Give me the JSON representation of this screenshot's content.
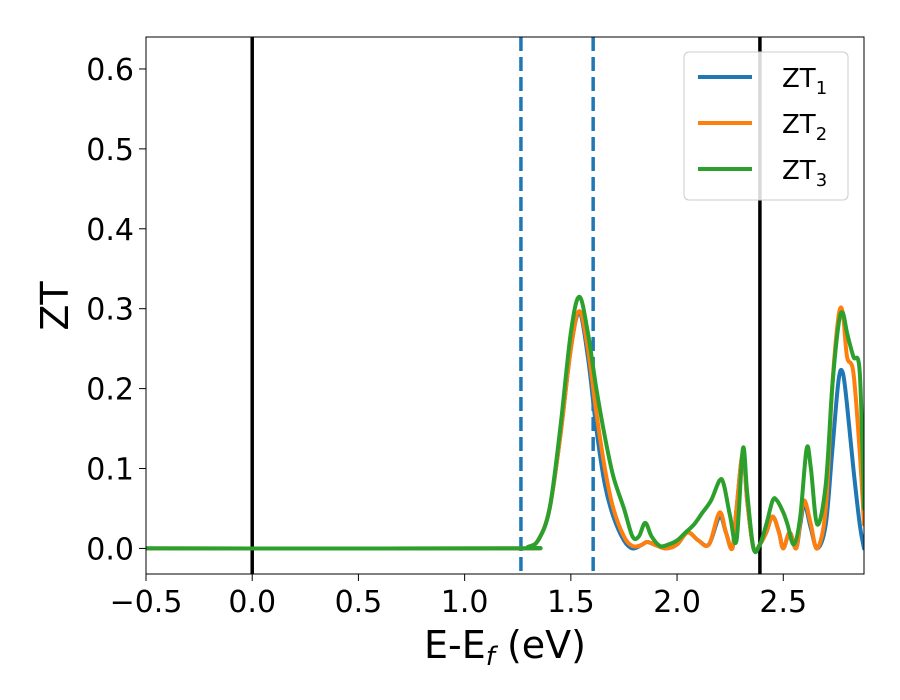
{
  "chart_data": {
    "type": "line",
    "xlabel": "E-E",
    "xlabel_sub": "f",
    "xlabel_unit": " (eV)",
    "ylabel": "ZT",
    "xlim": [
      -0.5,
      2.88
    ],
    "ylim": [
      -0.032,
      0.64
    ],
    "x_ticks": [
      -0.5,
      0.0,
      0.5,
      1.0,
      1.5,
      2.0,
      2.5
    ],
    "x_tick_labels": [
      "−0.5",
      "0.0",
      "0.5",
      "1.0",
      "1.5",
      "2.0",
      "2.5"
    ],
    "y_ticks": [
      0.0,
      0.1,
      0.2,
      0.3,
      0.4,
      0.5,
      0.6
    ],
    "y_tick_labels": [
      "0.0",
      "0.1",
      "0.2",
      "0.3",
      "0.4",
      "0.5",
      "0.6"
    ],
    "grid": false,
    "legend_position": "top-right",
    "vlines": [
      {
        "x": 0.0,
        "style": "solid",
        "color": "#000000"
      },
      {
        "x": 2.39,
        "style": "solid",
        "color": "#000000"
      },
      {
        "x": 1.265,
        "style": "dashed",
        "color": "#1f77b4"
      },
      {
        "x": 1.605,
        "style": "dashed",
        "color": "#1f77b4"
      }
    ],
    "series": [
      {
        "name": "ZT",
        "sub": "1",
        "color": "#1f77b4",
        "x": [
          -0.5,
          1.2,
          1.3,
          1.35,
          1.4,
          1.45,
          1.5,
          1.54,
          1.58,
          1.62,
          1.66,
          1.7,
          1.75,
          1.79,
          1.83,
          1.86,
          1.9,
          1.95,
          2.0,
          2.05,
          2.1,
          2.15,
          2.2,
          2.23,
          2.26,
          2.28,
          2.31,
          2.33,
          2.36,
          2.39,
          2.42,
          2.45,
          2.48,
          2.5,
          2.53,
          2.56,
          2.58,
          2.6,
          2.63,
          2.66,
          2.7,
          2.73,
          2.76,
          2.78,
          2.8,
          2.83,
          2.86,
          2.88
        ],
        "y": [
          0.0,
          0.0,
          0.002,
          0.012,
          0.05,
          0.14,
          0.25,
          0.295,
          0.24,
          0.15,
          0.08,
          0.04,
          0.01,
          0.0,
          0.004,
          0.008,
          0.004,
          0.0,
          0.005,
          0.02,
          0.01,
          0.005,
          0.04,
          0.02,
          0.0,
          0.05,
          0.12,
          0.06,
          0.0,
          0.005,
          0.02,
          0.04,
          0.02,
          0.0,
          0.02,
          0.0,
          0.03,
          0.055,
          0.025,
          0.0,
          0.03,
          0.12,
          0.21,
          0.22,
          0.18,
          0.1,
          0.03,
          0.0
        ]
      },
      {
        "name": "ZT",
        "sub": "2",
        "color": "#ff7f0e",
        "x": [
          -0.5,
          1.2,
          1.3,
          1.35,
          1.4,
          1.45,
          1.5,
          1.54,
          1.58,
          1.62,
          1.66,
          1.7,
          1.75,
          1.79,
          1.83,
          1.86,
          1.9,
          1.95,
          2.0,
          2.05,
          2.1,
          2.15,
          2.2,
          2.23,
          2.26,
          2.28,
          2.31,
          2.33,
          2.36,
          2.39,
          2.42,
          2.45,
          2.48,
          2.5,
          2.53,
          2.56,
          2.58,
          2.6,
          2.63,
          2.66,
          2.7,
          2.73,
          2.76,
          2.78,
          2.8,
          2.83,
          2.86,
          2.88
        ],
        "y": [
          0.0,
          0.0,
          0.002,
          0.012,
          0.05,
          0.14,
          0.25,
          0.297,
          0.25,
          0.17,
          0.1,
          0.05,
          0.015,
          0.003,
          0.004,
          0.008,
          0.004,
          0.0,
          0.005,
          0.02,
          0.01,
          0.005,
          0.045,
          0.02,
          0.0,
          0.05,
          0.12,
          0.06,
          0.0,
          0.005,
          0.02,
          0.04,
          0.02,
          0.0,
          0.02,
          0.0,
          0.035,
          0.06,
          0.03,
          0.0,
          0.05,
          0.2,
          0.29,
          0.295,
          0.24,
          0.22,
          0.12,
          0.03
        ]
      },
      {
        "name": "ZT",
        "sub": "3",
        "color": "#2ca02c",
        "x": [
          -0.5,
          1.2,
          1.3,
          1.35,
          1.4,
          1.45,
          1.5,
          1.54,
          1.58,
          1.62,
          1.66,
          1.7,
          1.75,
          1.79,
          1.82,
          1.85,
          1.88,
          1.92,
          1.96,
          2.0,
          2.04,
          2.08,
          2.12,
          2.16,
          2.2,
          2.22,
          2.25,
          2.28,
          2.31,
          2.33,
          2.36,
          2.39,
          2.42,
          2.45,
          2.47,
          2.5,
          2.52,
          2.55,
          2.58,
          2.61,
          2.63,
          2.66,
          2.7,
          2.73,
          2.76,
          2.78,
          2.8,
          2.83,
          2.86,
          2.88
        ],
        "y": [
          0.0,
          0.0,
          0.002,
          0.012,
          0.05,
          0.15,
          0.27,
          0.315,
          0.27,
          0.2,
          0.14,
          0.09,
          0.05,
          0.015,
          0.015,
          0.032,
          0.015,
          0.003,
          0.005,
          0.01,
          0.02,
          0.03,
          0.045,
          0.06,
          0.085,
          0.08,
          0.04,
          0.01,
          0.125,
          0.07,
          0.0,
          0.005,
          0.03,
          0.06,
          0.06,
          0.045,
          0.03,
          0.005,
          0.04,
          0.125,
          0.1,
          0.03,
          0.08,
          0.2,
          0.28,
          0.295,
          0.27,
          0.24,
          0.22,
          0.05
        ]
      }
    ]
  }
}
